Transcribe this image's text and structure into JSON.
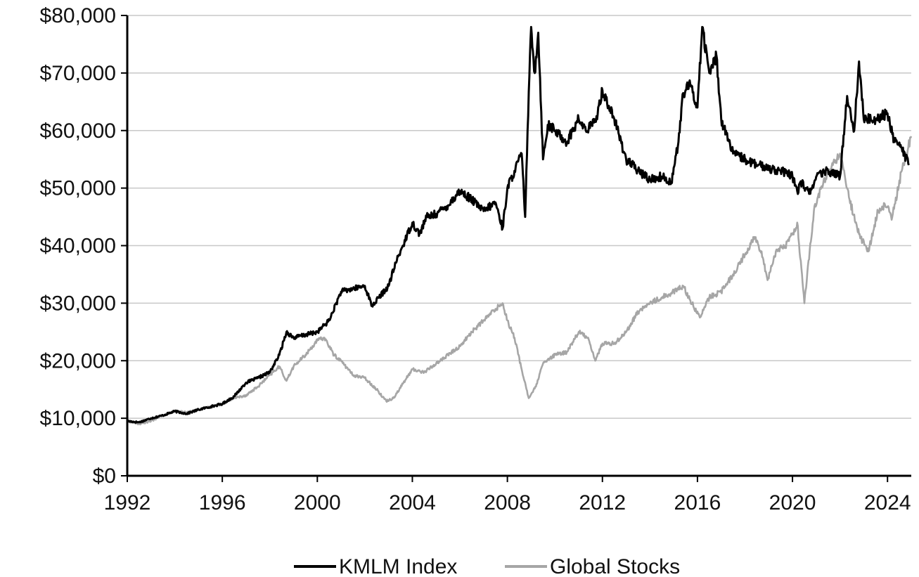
{
  "chart_data": {
    "type": "line",
    "title": "",
    "xlabel": "",
    "ylabel": "",
    "xlim": [
      1992,
      2025
    ],
    "ylim": [
      0,
      80000
    ],
    "x_ticks": [
      1992,
      1996,
      2000,
      2004,
      2008,
      2012,
      2016,
      2020,
      2024
    ],
    "x_tick_labels": [
      "1992",
      "1996",
      "2000",
      "2004",
      "2008",
      "2012",
      "2016",
      "2020",
      "2024"
    ],
    "y_ticks": [
      0,
      10000,
      20000,
      30000,
      40000,
      50000,
      60000,
      70000,
      80000
    ],
    "y_tick_labels": [
      "$0",
      "$10,000",
      "$20,000",
      "$30,000",
      "$40,000",
      "$50,000",
      "$60,000",
      "$70,000",
      "$80,000"
    ],
    "grid": "horizontal",
    "legend_position": "bottom",
    "series": [
      {
        "name": "KMLM Index",
        "color": "#000000",
        "x": [
          1992.0,
          1992.5,
          1993.0,
          1993.5,
          1994.0,
          1994.5,
          1995.0,
          1995.5,
          1996.0,
          1996.5,
          1997.0,
          1997.5,
          1998.0,
          1998.4,
          1998.7,
          1999.0,
          1999.5,
          2000.0,
          2000.5,
          2001.0,
          2001.5,
          2002.0,
          2002.3,
          2002.6,
          2003.0,
          2003.3,
          2003.6,
          2004.0,
          2004.3,
          2004.6,
          2005.0,
          2005.5,
          2006.0,
          2006.5,
          2007.0,
          2007.5,
          2007.8,
          2008.0,
          2008.3,
          2008.6,
          2008.75,
          2008.85,
          2009.0,
          2009.15,
          2009.3,
          2009.5,
          2009.7,
          2010.0,
          2010.5,
          2011.0,
          2011.3,
          2011.7,
          2012.0,
          2012.5,
          2013.0,
          2013.5,
          2014.0,
          2014.5,
          2014.9,
          2015.2,
          2015.4,
          2015.7,
          2016.0,
          2016.2,
          2016.5,
          2016.8,
          2017.0,
          2017.5,
          2018.0,
          2018.5,
          2019.0,
          2019.5,
          2020.0,
          2020.2,
          2020.4,
          2020.7,
          2021.0,
          2021.5,
          2022.0,
          2022.3,
          2022.6,
          2022.8,
          2023.0,
          2023.5,
          2024.0,
          2024.3,
          2024.6,
          2024.9
        ],
        "y": [
          9500,
          9300,
          10000,
          10500,
          11200,
          10800,
          11500,
          12000,
          12500,
          13800,
          16200,
          17000,
          18000,
          21000,
          25000,
          24000,
          24500,
          25000,
          27000,
          32000,
          32500,
          33000,
          29500,
          31000,
          33000,
          37000,
          40000,
          44000,
          42000,
          45000,
          45500,
          47000,
          49500,
          48000,
          46000,
          47500,
          43000,
          50000,
          53000,
          56000,
          45000,
          60000,
          78000,
          70000,
          77000,
          55000,
          61000,
          60000,
          58000,
          62000,
          60000,
          61500,
          67000,
          62000,
          55000,
          53000,
          51500,
          52000,
          51000,
          58000,
          66500,
          68000,
          64000,
          78000,
          70000,
          73000,
          62000,
          56000,
          55000,
          54000,
          53500,
          53000,
          52000,
          49500,
          51000,
          49000,
          52000,
          53000,
          52000,
          66000,
          60000,
          72000,
          62000,
          62000,
          63000,
          58000,
          57000,
          54000
        ]
      },
      {
        "name": "Global Stocks",
        "color": "#a6a6a6",
        "x": [
          1992.0,
          1992.5,
          1993.0,
          1993.5,
          1994.0,
          1994.5,
          1995.0,
          1995.5,
          1996.0,
          1996.5,
          1997.0,
          1997.5,
          1998.0,
          1998.4,
          1998.7,
          1999.0,
          1999.5,
          2000.0,
          2000.3,
          2000.7,
          2001.0,
          2001.5,
          2002.0,
          2002.5,
          2002.9,
          2003.2,
          2003.6,
          2004.0,
          2004.5,
          2005.0,
          2005.5,
          2006.0,
          2006.5,
          2007.0,
          2007.5,
          2007.8,
          2008.0,
          2008.3,
          2008.6,
          2008.9,
          2009.2,
          2009.5,
          2010.0,
          2010.5,
          2011.0,
          2011.4,
          2011.7,
          2012.0,
          2012.5,
          2013.0,
          2013.5,
          2014.0,
          2014.5,
          2015.0,
          2015.4,
          2015.7,
          2016.1,
          2016.5,
          2017.0,
          2017.5,
          2018.0,
          2018.4,
          2018.7,
          2018.95,
          2019.3,
          2019.7,
          2020.0,
          2020.2,
          2020.5,
          2020.9,
          2021.3,
          2021.7,
          2022.0,
          2022.4,
          2022.8,
          2023.2,
          2023.6,
          2023.9,
          2024.2,
          2024.6,
          2025.0
        ],
        "y": [
          9500,
          9000,
          9500,
          10500,
          11300,
          11000,
          11500,
          12000,
          12500,
          13500,
          14000,
          15500,
          17500,
          19000,
          16500,
          19000,
          21000,
          23500,
          24000,
          21000,
          20000,
          17500,
          17000,
          15000,
          13000,
          13500,
          16000,
          18500,
          18000,
          19500,
          21000,
          22500,
          25000,
          27000,
          29000,
          30000,
          27000,
          24000,
          18500,
          13500,
          15500,
          19500,
          21000,
          21500,
          25000,
          24000,
          20000,
          23000,
          23000,
          25000,
          28500,
          30000,
          31000,
          32000,
          33000,
          30500,
          27500,
          31000,
          32000,
          35000,
          38500,
          41500,
          39000,
          34000,
          39000,
          40000,
          42000,
          44000,
          30000,
          46000,
          51000,
          54000,
          56000,
          48000,
          42000,
          39000,
          46000,
          47000,
          45000,
          53000,
          59000
        ]
      }
    ]
  }
}
